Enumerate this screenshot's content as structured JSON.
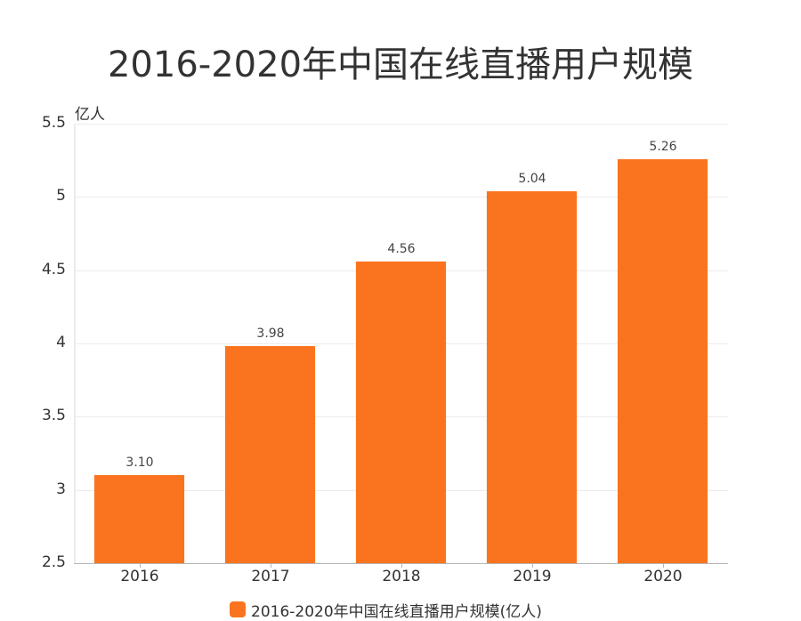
{
  "chart_data": {
    "type": "bar",
    "title": "2016-2020年中国在线直播用户规模",
    "ylabel": "亿人",
    "xlabel": "",
    "categories": [
      "2016",
      "2017",
      "2018",
      "2019",
      "2020"
    ],
    "series": [
      {
        "name": "2016-2020年中国在线直播用户规模(亿人)",
        "values": [
          3.1,
          3.98,
          4.56,
          5.04,
          5.26
        ],
        "labels": [
          "3.10",
          "3.98",
          "4.56",
          "5.04",
          "5.26"
        ],
        "color": "#fa7420"
      }
    ],
    "ylim": [
      2.5,
      5.5
    ],
    "yticks": [
      "5.5",
      "5",
      "4.5",
      "4",
      "3.5",
      "3",
      "2.5"
    ],
    "grid": true,
    "legend_position": "bottom"
  },
  "title": "2016-2020年中国在线直播用户规模",
  "unit": "亿人",
  "legend": {
    "label": "2016-2020年中国在线直播用户规模(亿人)"
  }
}
